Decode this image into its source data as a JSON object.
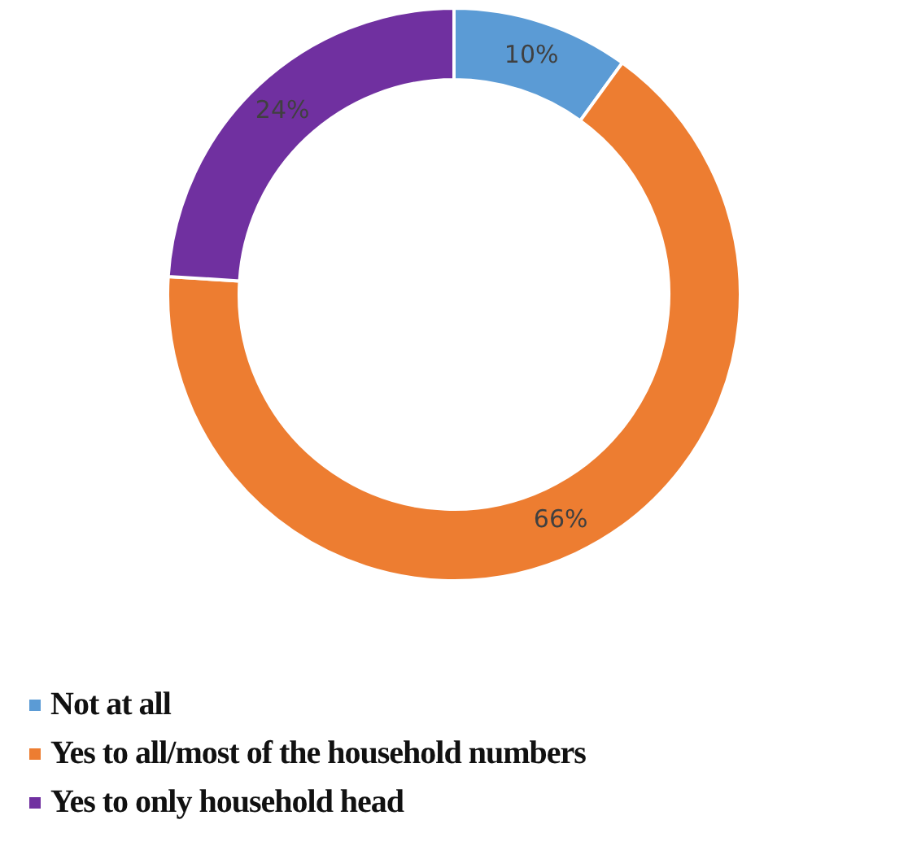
{
  "chart_data": {
    "type": "donut",
    "categories": [
      "Not at all",
      "Yes to all/most of the household numbers",
      "Yes to only household head"
    ],
    "values": [
      10,
      66,
      24
    ],
    "colors": [
      "#5b9bd5",
      "#ed7d31",
      "#7030a0"
    ],
    "value_labels": [
      "10%",
      "66%",
      "24%"
    ],
    "legend": "bottom"
  }
}
